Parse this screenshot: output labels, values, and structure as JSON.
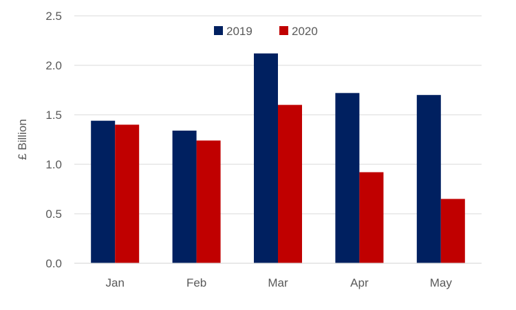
{
  "chart_data": {
    "type": "bar",
    "title": "",
    "xlabel": "",
    "ylabel": "£ Billion",
    "ylim": [
      0,
      2.5
    ],
    "yticks": [
      "0.0",
      "0.5",
      "1.0",
      "1.5",
      "2.0",
      "2.5"
    ],
    "ytick_values": [
      0,
      0.5,
      1.0,
      1.5,
      2.0,
      2.5
    ],
    "categories": [
      "Jan",
      "Feb",
      "Mar",
      "Apr",
      "May"
    ],
    "series": [
      {
        "name": "2019",
        "color": "#002060",
        "values": [
          1.44,
          1.34,
          2.12,
          1.72,
          1.7
        ]
      },
      {
        "name": "2020",
        "color": "#C00000",
        "values": [
          1.4,
          1.24,
          1.6,
          0.92,
          0.65
        ]
      }
    ],
    "grid": true,
    "legend_position": "top-center"
  }
}
